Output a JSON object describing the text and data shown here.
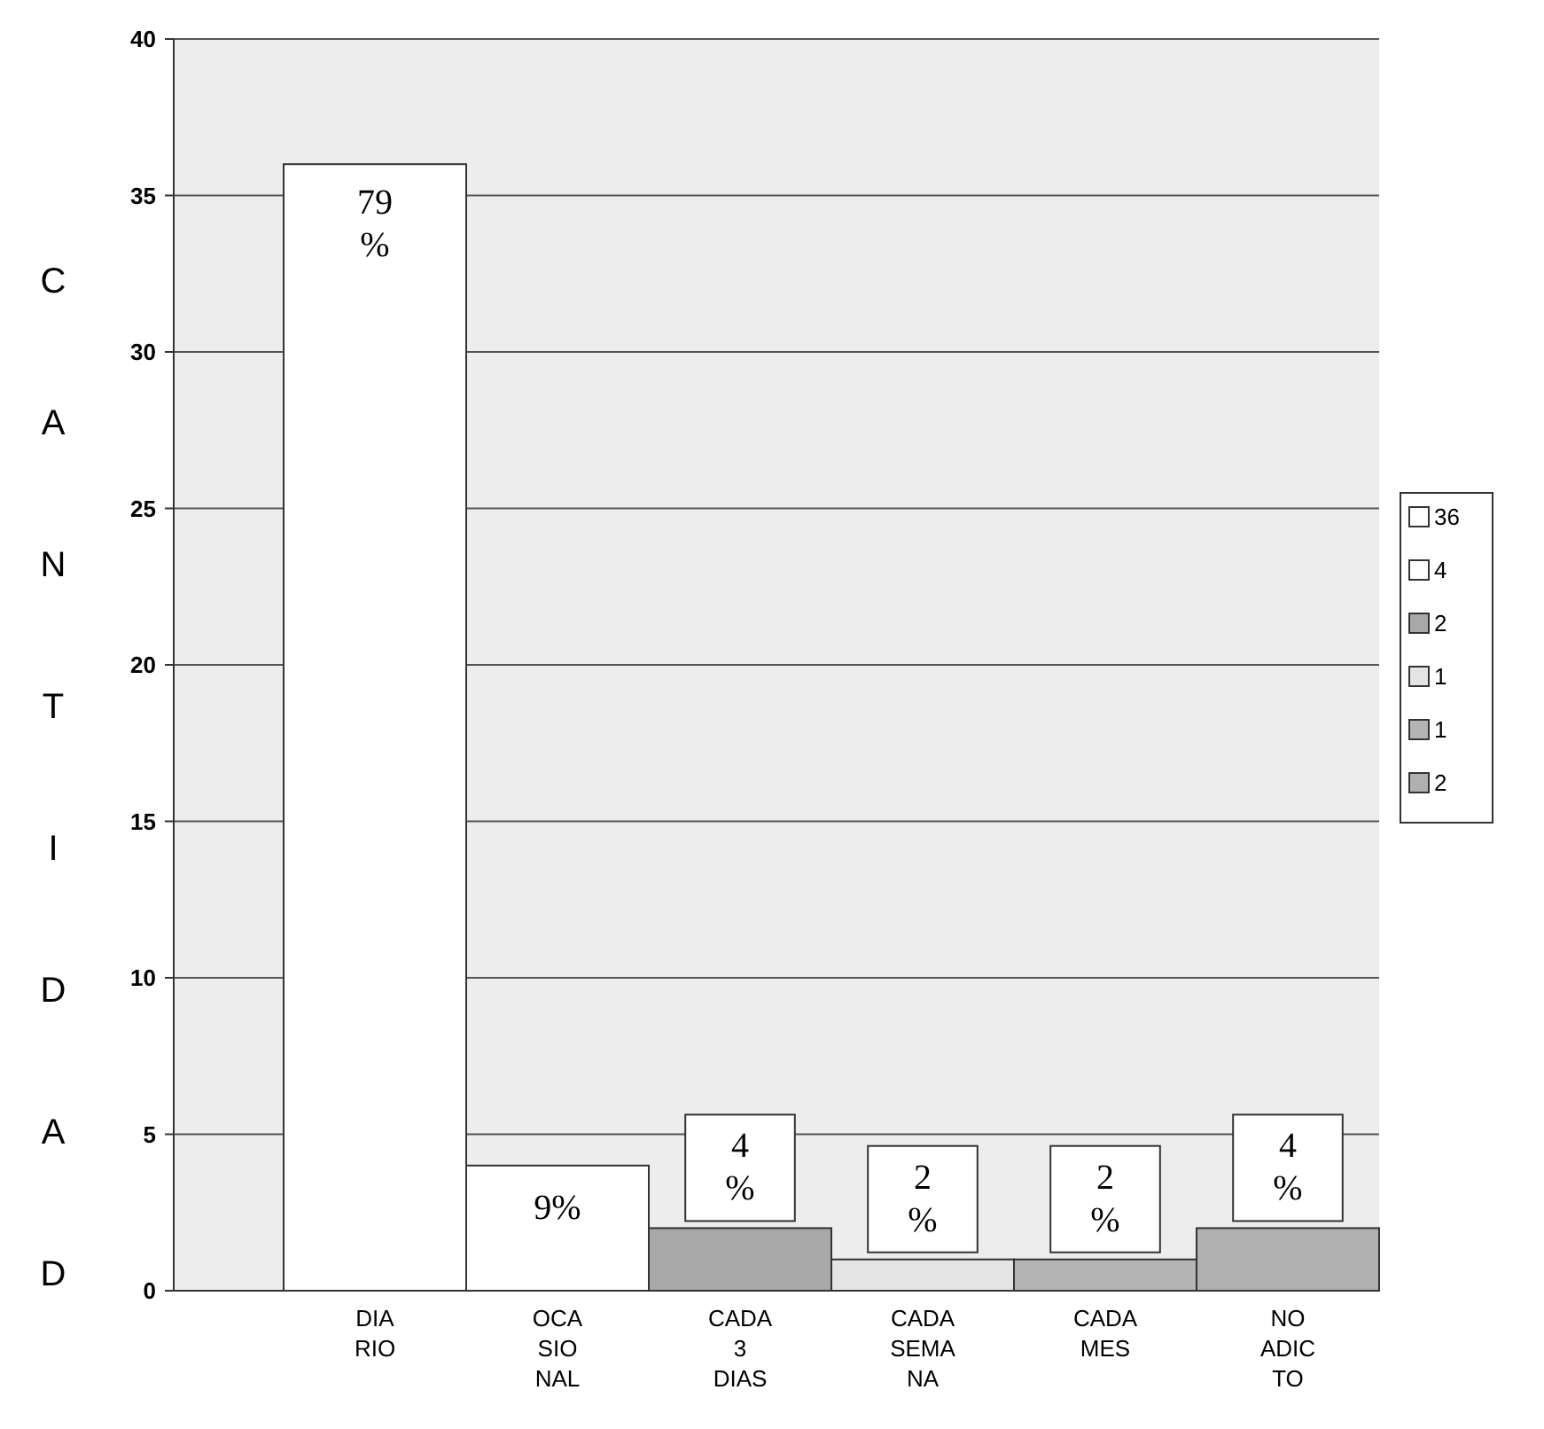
{
  "chart_data": {
    "type": "bar",
    "ylabel": "CANTIDAD",
    "categories": [
      "DIA\nRIO",
      "OCA\nSIO\nNAL",
      "CADA\n3\nDIAS",
      "CADA\nSEMA\nNA",
      "CADA\nMES",
      "NO\nADIC\nTO"
    ],
    "legend": "right",
    "grid": "y",
    "ylim": [
      0,
      40
    ],
    "yticks": [
      0,
      5,
      10,
      15,
      20,
      25,
      30,
      35,
      40
    ],
    "series": [
      {
        "name": "36",
        "color": "#ffffff",
        "values": [
          36,
          null,
          null,
          null,
          null,
          null
        ]
      },
      {
        "name": "4",
        "color": "#ffffff",
        "values": [
          null,
          4,
          null,
          null,
          null,
          null
        ]
      },
      {
        "name": "2",
        "color": "#a8a8a8",
        "values": [
          null,
          null,
          2,
          null,
          null,
          null
        ]
      },
      {
        "name": "1",
        "color": "#e4e4e4",
        "values": [
          null,
          null,
          null,
          1,
          null,
          null
        ]
      },
      {
        "name": "1",
        "color": "#b4b4b4",
        "values": [
          null,
          null,
          null,
          null,
          1,
          null
        ]
      },
      {
        "name": "2",
        "color": "#b0b0b0",
        "values": [
          null,
          null,
          null,
          null,
          null,
          2
        ]
      }
    ],
    "annotations": [
      {
        "text": "79 %",
        "x": "DIA\nRIO",
        "y": 36
      },
      {
        "text": "9%",
        "x": "OCA\nSIO\nNAL",
        "y": 4
      },
      {
        "text": "4 %",
        "x": "CADA\n3\nDIAS",
        "y": 2
      },
      {
        "text": "2 %",
        "x": "CADA\nSEMA\nNA",
        "y": 1
      },
      {
        "text": "2 %",
        "x": "CADA\nMES",
        "y": 1
      },
      {
        "text": "4 %",
        "x": "NO\nADIC\nTO",
        "y": 2
      }
    ]
  }
}
